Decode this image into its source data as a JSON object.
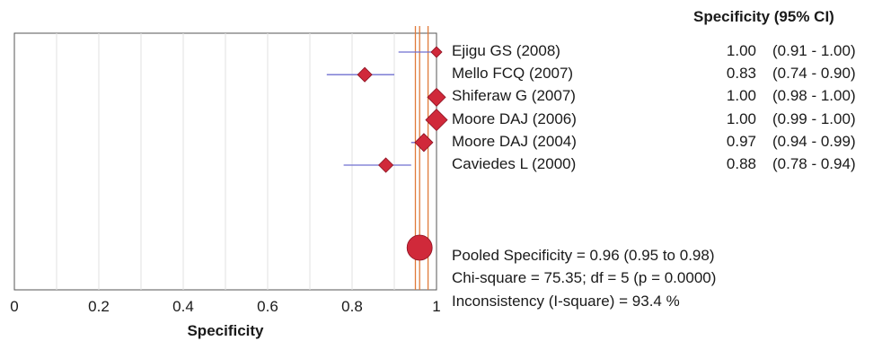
{
  "chart_data": {
    "type": "forest",
    "xlabel": "Specificity",
    "xlim": [
      0,
      1
    ],
    "xticks": [
      "0",
      "0.2",
      "0.4",
      "0.6",
      "0.8",
      "1"
    ],
    "column_header": "Specificity (95% CI)",
    "studies": [
      {
        "name": "Ejigu GS (2008)",
        "value": 1.0,
        "value_label": "1.00",
        "ci_low": 0.91,
        "ci_high": 1.0,
        "ci_label": "(0.91 - 1.00)"
      },
      {
        "name": "Mello FCQ (2007)",
        "value": 0.83,
        "value_label": "0.83",
        "ci_low": 0.74,
        "ci_high": 0.9,
        "ci_label": "(0.74 - 0.90)"
      },
      {
        "name": "Shiferaw G (2007)",
        "value": 1.0,
        "value_label": "1.00",
        "ci_low": 0.98,
        "ci_high": 1.0,
        "ci_label": "(0.98 - 1.00)"
      },
      {
        "name": "Moore DAJ (2006)",
        "value": 1.0,
        "value_label": "1.00",
        "ci_low": 0.99,
        "ci_high": 1.0,
        "ci_label": "(0.99 - 1.00)"
      },
      {
        "name": "Moore DAJ (2004)",
        "value": 0.97,
        "value_label": "0.97",
        "ci_low": 0.94,
        "ci_high": 0.99,
        "ci_label": "(0.94 - 0.99)"
      },
      {
        "name": "Caviedes L (2000)",
        "value": 0.88,
        "value_label": "0.88",
        "ci_low": 0.78,
        "ci_high": 0.94,
        "ci_label": "(0.78 - 0.94)"
      }
    ],
    "pooled": {
      "value": 0.96,
      "ci_low": 0.95,
      "ci_high": 0.98
    },
    "stats": {
      "pooled_text": "Pooled Specificity = 0.96 (0.95 to 0.98)",
      "chi_text": "Chi-square = 75.35; df =  5 (p = 0.0000)",
      "inconsistency_text": "Inconsistency (I-square) = 93.4 %"
    },
    "colors": {
      "marker": "#d0293a",
      "ci_line": "#6f6fd0",
      "pooled_line": "#e07a3a",
      "grid": "#e2e2e2"
    }
  }
}
